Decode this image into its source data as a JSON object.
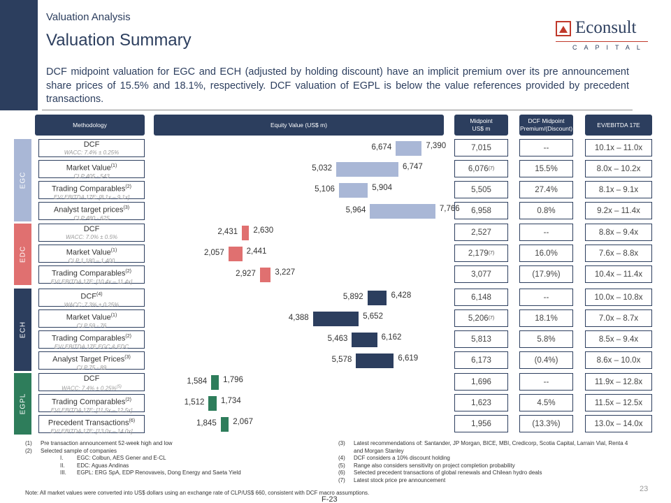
{
  "header": {
    "eyebrow": "Valuation Analysis",
    "title": "Valuation Summary",
    "logo_word": "Econsult",
    "logo_caption": "CAPITAL"
  },
  "summary": "DCF midpoint valuation for EGC and ECH (adjusted by holding discount) have an implicit premium over its pre announcement share prices of 15.5% and 18.1%, respectively. DCF valuation of EGPL is below the value references provided by precedent transactions.",
  "table_headers": {
    "methodology": "Methodology",
    "equity_value": "Equity Value (US$ m)",
    "midpoint_line1": "Midpoint",
    "midpoint_line2": "US$ m",
    "premium_line1": "DCF Midpoint",
    "premium_line2": "Premium/(Discount)",
    "ev_ebitda": "EV/EBITDA 17E"
  },
  "groups": [
    {
      "label": "EGC",
      "color": "#a9b7d6"
    },
    {
      "label": "EDC",
      "color": "#e07070"
    },
    {
      "label": "ECH",
      "color": "#2c3e5e"
    },
    {
      "label": "EGPL",
      "color": "#2e7d5b"
    }
  ],
  "rows": [
    {
      "name": "DCF",
      "name_sup": "",
      "sub": "WACC: 7.4% ± 0.25%",
      "sub_sup": "",
      "low": "6,674",
      "high": "7,390",
      "midpoint": "7,015",
      "midpoint_sup": "",
      "premium": "--",
      "ev_ebitda": "10.1x – 11.0x"
    },
    {
      "name": "Market Value",
      "name_sup": "(1)",
      "sub": "CLP 405 - 543",
      "sub_sup": "",
      "low": "5,032",
      "high": "6,747",
      "midpoint": "6,076",
      "midpoint_sup": "(7)",
      "premium": "15.5%",
      "ev_ebitda": "8.0x – 10.2x"
    },
    {
      "name": "Trading Comparables",
      "name_sup": "(2)",
      "sub": "EV/ EBITDA 17E: [8.1x – 9.1x]",
      "sub_sup": "",
      "low": "5,106",
      "high": "5,904",
      "midpoint": "5,505",
      "midpoint_sup": "",
      "premium": "27.4%",
      "ev_ebitda": "8.1x – 9.1x"
    },
    {
      "name": "Analyst target prices",
      "name_sup": "(3)",
      "sub": "CLP 480 - 625",
      "sub_sup": "",
      "low": "5,964",
      "high": "7,766",
      "midpoint": "6,958",
      "midpoint_sup": "",
      "premium": "0.8%",
      "ev_ebitda": "9.2x – 11.4x"
    },
    {
      "name": "DCF",
      "name_sup": "",
      "sub": "WACC: 7.0% ± 0.5%",
      "sub_sup": "",
      "low": "2,431",
      "high": "2,630",
      "midpoint": "2,527",
      "midpoint_sup": "",
      "premium": "--",
      "ev_ebitda": "8.8x – 9.4x"
    },
    {
      "name": "Market Value",
      "name_sup": "(1)",
      "sub": "CLP 1,180 – 1,400",
      "sub_sup": "",
      "low": "2,057",
      "high": "2,441",
      "midpoint": "2,179",
      "midpoint_sup": "(7)",
      "premium": "16.0%",
      "ev_ebitda": "7.6x – 8.8x"
    },
    {
      "name": "Trading Comparables",
      "name_sup": "(2)",
      "sub": "EV/ EBITDA 17E: [10.4x – 11.4x]",
      "sub_sup": "",
      "low": "2,927",
      "high": "3,227",
      "midpoint": "3,077",
      "midpoint_sup": "",
      "premium": "(17.9%)",
      "ev_ebitda": "10.4x – 11.4x"
    },
    {
      "name": "DCF",
      "name_sup": "(4)",
      "sub": "WACC: 7.3% ± 0.25%",
      "sub_sup": "",
      "low": "5,892",
      "high": "6,428",
      "midpoint": "6,148",
      "midpoint_sup": "",
      "premium": "--",
      "ev_ebitda": "10.0x – 10.8x"
    },
    {
      "name": "Market Value",
      "name_sup": "(1)",
      "sub": "CLP 59 - 76",
      "sub_sup": "",
      "low": "4,388",
      "high": "5,652",
      "midpoint": "5,206",
      "midpoint_sup": "(7)",
      "premium": "18.1%",
      "ev_ebitda": "7.0x – 8.7x"
    },
    {
      "name": "Trading Comparables",
      "name_sup": "(2)",
      "sub": "EV/ EBITDA 17E EGC & EDC",
      "sub_sup": "",
      "low": "5,463",
      "high": "6,162",
      "midpoint": "5,813",
      "midpoint_sup": "",
      "premium": "5.8%",
      "ev_ebitda": "8.5x – 9.4x"
    },
    {
      "name": "Analyst Target Prices",
      "name_sup": "(3)",
      "sub": "CLP 75 - 89",
      "sub_sup": "",
      "low": "5,578",
      "high": "6,619",
      "midpoint": "6,173",
      "midpoint_sup": "",
      "premium": "(0.4%)",
      "ev_ebitda": "8.6x – 10.0x"
    },
    {
      "name": "DCF",
      "name_sup": "",
      "sub": "WACC: 7.4% ± 0.25%",
      "sub_sup": "(5)",
      "low": "1,584",
      "high": "1,796",
      "midpoint": "1,696",
      "midpoint_sup": "",
      "premium": "--",
      "ev_ebitda": "11.9x – 12.8x"
    },
    {
      "name": "Trading Comparables",
      "name_sup": "(2)",
      "sub": "EV/ EBITDA 17E: [11.5x – 12.5x]",
      "sub_sup": "",
      "low": "1,512",
      "high": "1,734",
      "midpoint": "1,623",
      "midpoint_sup": "",
      "premium": "4.5%",
      "ev_ebitda": "11.5x – 12.5x"
    },
    {
      "name": "Precedent Transactions",
      "name_sup": "(6)",
      "sub": "EV/ EBITDA 17E: [13.0x – 14.0x]",
      "sub_sup": "",
      "low": "1,845",
      "high": "2,067",
      "midpoint": "1,956",
      "midpoint_sup": "",
      "premium": "(13.3%)",
      "ev_ebitda": "13.0x – 14.0x"
    }
  ],
  "chart_data": {
    "type": "bar",
    "subtype": "floating-range",
    "title": "Equity Value (US$ m)",
    "categories": [
      "EGC DCF",
      "EGC Market Value",
      "EGC Trading Comparables",
      "EGC Analyst target prices",
      "EDC DCF",
      "EDC Market Value",
      "EDC Trading Comparables",
      "ECH DCF",
      "ECH Market Value",
      "ECH Trading Comparables",
      "ECH Analyst Target Prices",
      "EGPL DCF",
      "EGPL Trading Comparables",
      "EGPL Precedent Transactions"
    ],
    "series": [
      {
        "name": "low",
        "values": [
          6674,
          5032,
          5106,
          5964,
          2431,
          2057,
          2927,
          5892,
          4388,
          5463,
          5578,
          1584,
          1512,
          1845
        ]
      },
      {
        "name": "high",
        "values": [
          7390,
          6747,
          5904,
          7766,
          2630,
          2441,
          3227,
          6428,
          5652,
          6162,
          6619,
          1796,
          1734,
          2067
        ]
      }
    ],
    "groups": [
      "EGC",
      "EGC",
      "EGC",
      "EGC",
      "EDC",
      "EDC",
      "EDC",
      "ECH",
      "ECH",
      "ECH",
      "ECH",
      "EGPL",
      "EGPL",
      "EGPL"
    ],
    "xlim": [
      0,
      8000
    ]
  },
  "notes_left": [
    {
      "num": "(1)",
      "text": "Pre  transaction announcement 52-week high and low"
    },
    {
      "num": "(2)",
      "text": "Selected sample of companies"
    },
    {
      "num": "I.",
      "text": "EGC: Colbun, AES Gener and E-CL",
      "sub": true
    },
    {
      "num": "II.",
      "text": "EDC: Aguas Andinas",
      "sub": true
    },
    {
      "num": "III.",
      "text": "EGPL: ERG SpA, EDP Renovaveis, Dong Energy and Saeta Yield",
      "sub": true
    }
  ],
  "notes_right": [
    {
      "num": "(3)",
      "text": "Latest recommendations of: Santander, JP Morgan, BICE, MBI, Credicorp, Scotia Capital, Larrain Vial, Renta 4"
    },
    {
      "num": "",
      "text": "and Morgan Stanley"
    },
    {
      "num": "(4)",
      "text": "DCF considers a 10% discount holding"
    },
    {
      "num": "(5)",
      "text": "Range also considers sensitivity on project completion probability"
    },
    {
      "num": "(6)",
      "text": "Selected precedent transactions of global renewals and Chilean hydro deals"
    },
    {
      "num": "(7)",
      "text": "Latest stock price pre announcement"
    }
  ],
  "footer": {
    "note": "Note: All market values were converted into US$ dollars using an exchange rate of CLP/US$ 660, consistent with DCF macro assumptions.",
    "page_number": "23",
    "filing_page": "F-23"
  }
}
